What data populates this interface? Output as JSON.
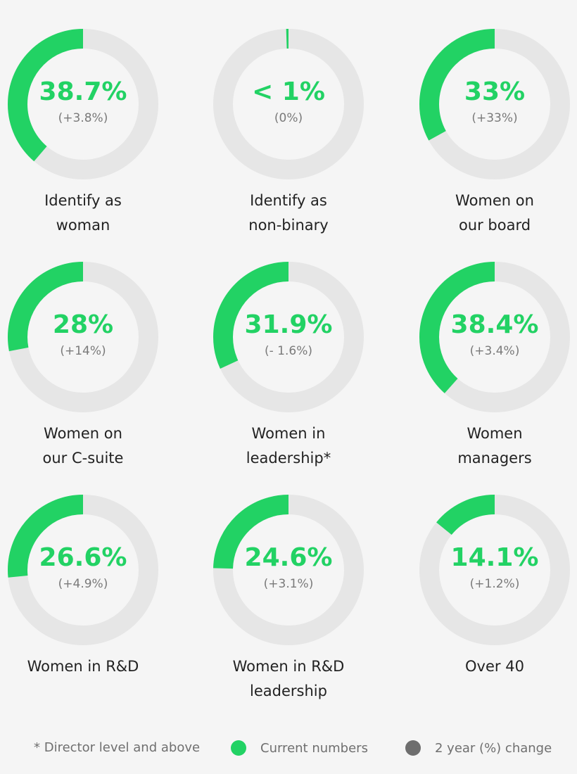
{
  "colors": {
    "accent": "#22d264",
    "track": "#e6e6e6",
    "change_dot": "#6e6e6e"
  },
  "chart_data": {
    "type": "donut",
    "items": [
      {
        "value": 38.7,
        "value_label": "38.7%",
        "change_label": "(+3.8%)",
        "label_lines": [
          "Identify as",
          "woman"
        ]
      },
      {
        "value": 0.5,
        "value_label": "< 1%",
        "change_label": "(0%)",
        "label_lines": [
          "Identify as",
          "non-binary"
        ]
      },
      {
        "value": 33,
        "value_label": "33%",
        "change_label": "(+33%)",
        "label_lines": [
          "Women on",
          "our board"
        ]
      },
      {
        "value": 28,
        "value_label": "28%",
        "change_label": "(+14%)",
        "label_lines": [
          "Women on",
          "our C-suite"
        ]
      },
      {
        "value": 31.9,
        "value_label": "31.9%",
        "change_label": "(- 1.6%)",
        "label_lines": [
          "Women in",
          "leadership*"
        ]
      },
      {
        "value": 38.4,
        "value_label": "38.4%",
        "change_label": "(+3.4%)",
        "label_lines": [
          "Women",
          "managers"
        ]
      },
      {
        "value": 26.6,
        "value_label": "26.6%",
        "change_label": "(+4.9%)",
        "label_lines": [
          "Women in R&D"
        ]
      },
      {
        "value": 24.6,
        "value_label": "24.6%",
        "change_label": "(+3.1%)",
        "label_lines": [
          "Women in R&D",
          "leadership"
        ]
      },
      {
        "value": 14.1,
        "value_label": "14.1%",
        "change_label": "(+1.2%)",
        "label_lines": [
          "Over 40"
        ]
      }
    ]
  },
  "legend": {
    "footnote": "* Director level and above",
    "current": "Current numbers",
    "change": "2 year (%) change"
  }
}
